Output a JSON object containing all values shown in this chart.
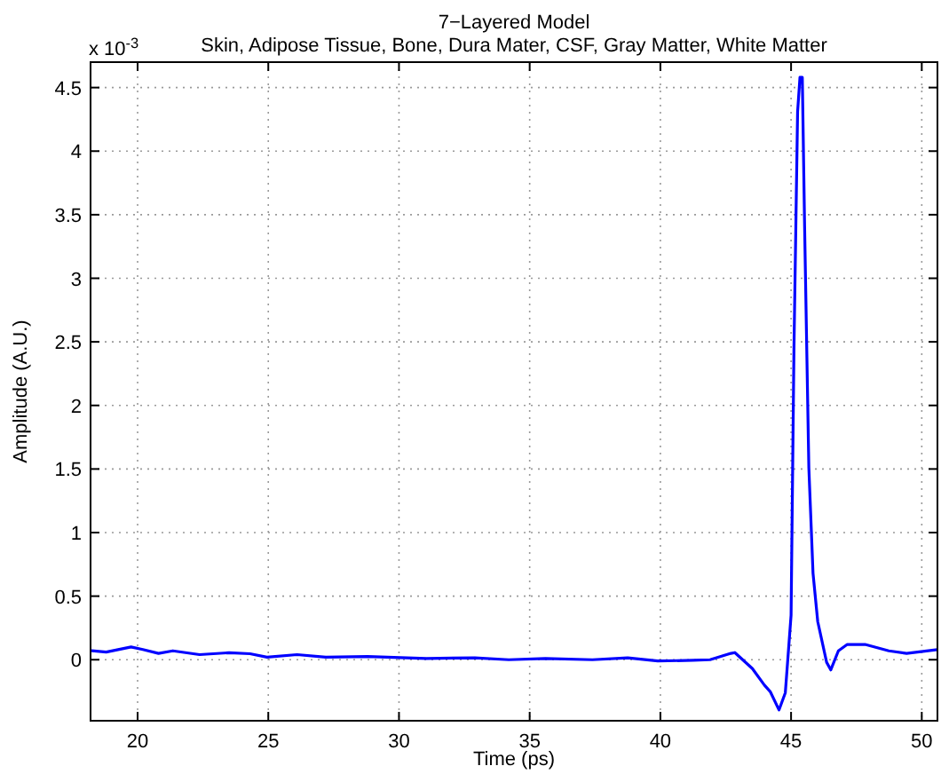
{
  "chart_data": {
    "type": "line",
    "title": "7−Layered Model",
    "subtitle": "Skin, Adipose Tissue, Bone, Dura Mater, CSF, Gray Matter, White Matter",
    "xlabel": "Time (ps)",
    "ylabel": "Amplitude (A.U.)",
    "annotations": [
      "x 10$^{-3}$"
    ],
    "series": [
      {
        "color": "#0000ff",
        "x": [
          18.25,
          18.8,
          19.75,
          20.2,
          20.8,
          21.35,
          22.37,
          23.5,
          24.3,
          24.95,
          26.1,
          27.2,
          28.8,
          31.05,
          32.9,
          34.2,
          35.6,
          37.4,
          38.75,
          39.9,
          41.25,
          41.9,
          42.7,
          42.85,
          43.52,
          43.98,
          44.2,
          44.54,
          44.78,
          45.0,
          45.11,
          45.25,
          45.34,
          45.43,
          45.52,
          45.68,
          45.84,
          46.02,
          46.36,
          46.52,
          46.81,
          47.15,
          47.83,
          48.74,
          49.42,
          50.6
        ],
        "values": [
          0.07,
          0.06,
          0.1,
          0.08,
          0.05,
          0.07,
          0.04,
          0.055,
          0.047,
          0.02,
          0.04,
          0.02,
          0.025,
          0.01,
          0.015,
          0,
          0.01,
          0,
          0.015,
          -0.01,
          -0.005,
          0,
          0.05,
          0.056,
          -0.07,
          -0.2,
          -0.25,
          -0.395,
          -0.26,
          0.35,
          2.44,
          4.31,
          4.58,
          4.58,
          3.38,
          1.51,
          0.68,
          0.3,
          -0.02,
          -0.08,
          0.07,
          0.12,
          0.12,
          0.07,
          0.05,
          0.08
        ]
      }
    ],
    "xlim": [
      18.2,
      50.6
    ],
    "ylim": [
      -0.48,
      4.7
    ],
    "xticks": [
      20,
      25,
      30,
      35,
      40,
      45,
      50
    ],
    "yticks": [
      0,
      0.5,
      1,
      1.5,
      2,
      2.5,
      3,
      3.5,
      4,
      4.5
    ],
    "grid": true,
    "line_style": "solid",
    "marker": "none"
  }
}
